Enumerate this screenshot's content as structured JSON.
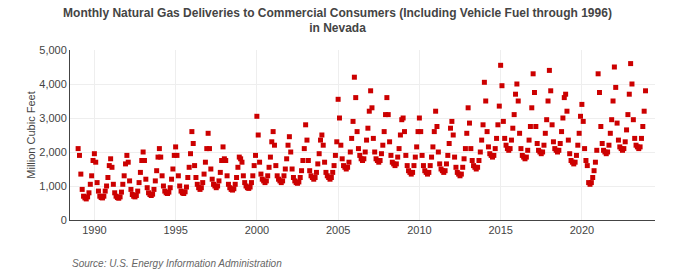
{
  "chart_data": {
    "type": "scatter",
    "title": "Monthly Natural Gas Deliveries to Commercial Consumers (Including Vehicle Fuel through 1996)\nin Nevada",
    "ylabel": "Million Cubic Feet",
    "annotations": [
      "Source: U.S. Energy Information Administration"
    ],
    "color": "#cc0000",
    "marker": "square",
    "grid": true,
    "xlim": [
      1988.5,
      2024.5
    ],
    "ylim": [
      0,
      5000
    ],
    "xticks": [
      1990,
      1995,
      2000,
      2005,
      2010,
      2015,
      2020
    ],
    "yticks": [
      0,
      {
        "value": 1000,
        "label": "1,000"
      },
      {
        "value": 2000,
        "label": "2,000"
      },
      {
        "value": 3000,
        "label": "3,000"
      },
      {
        "value": 4000,
        "label": "4,000"
      },
      {
        "value": 5000,
        "label": "5,000"
      }
    ],
    "x": [
      1989.0,
      1989.083,
      1989.167,
      1989.25,
      1989.333,
      1989.417,
      1989.5,
      1989.583,
      1989.667,
      1989.75,
      1989.833,
      1989.917,
      1990.0,
      1990.083,
      1990.167,
      1990.25,
      1990.333,
      1990.417,
      1990.5,
      1990.583,
      1990.667,
      1990.75,
      1990.833,
      1990.917,
      1991.0,
      1991.083,
      1991.167,
      1991.25,
      1991.333,
      1991.417,
      1991.5,
      1991.583,
      1991.667,
      1991.75,
      1991.833,
      1991.917,
      1992.0,
      1992.083,
      1992.167,
      1992.25,
      1992.333,
      1992.417,
      1992.5,
      1992.583,
      1992.667,
      1992.75,
      1992.833,
      1992.917,
      1993.0,
      1993.083,
      1993.167,
      1993.25,
      1993.333,
      1993.417,
      1993.5,
      1993.583,
      1993.667,
      1993.75,
      1993.833,
      1993.917,
      1994.0,
      1994.083,
      1994.167,
      1994.25,
      1994.333,
      1994.417,
      1994.5,
      1994.583,
      1994.667,
      1994.75,
      1994.833,
      1994.917,
      1995.0,
      1995.083,
      1995.167,
      1995.25,
      1995.333,
      1995.417,
      1995.5,
      1995.583,
      1995.667,
      1995.75,
      1995.833,
      1995.917,
      1996.0,
      1996.083,
      1996.167,
      1996.25,
      1996.333,
      1996.417,
      1996.5,
      1996.583,
      1996.667,
      1996.75,
      1996.833,
      1996.917,
      1997.0,
      1997.083,
      1997.167,
      1997.25,
      1997.333,
      1997.417,
      1997.5,
      1997.583,
      1997.667,
      1997.75,
      1997.833,
      1997.917,
      1998.0,
      1998.083,
      1998.167,
      1998.25,
      1998.333,
      1998.417,
      1998.5,
      1998.583,
      1998.667,
      1998.75,
      1998.833,
      1998.917,
      1999.0,
      1999.083,
      1999.167,
      1999.25,
      1999.333,
      1999.417,
      1999.5,
      1999.583,
      1999.667,
      1999.75,
      1999.833,
      1999.917,
      2000.0,
      2000.083,
      2000.167,
      2000.25,
      2000.333,
      2000.417,
      2000.5,
      2000.583,
      2000.667,
      2000.75,
      2000.833,
      2000.917,
      2001.0,
      2001.083,
      2001.167,
      2001.25,
      2001.333,
      2001.417,
      2001.5,
      2001.583,
      2001.667,
      2001.75,
      2001.833,
      2001.917,
      2002.0,
      2002.083,
      2002.167,
      2002.25,
      2002.333,
      2002.417,
      2002.5,
      2002.583,
      2002.667,
      2002.75,
      2002.833,
      2002.917,
      2003.0,
      2003.083,
      2003.167,
      2003.25,
      2003.333,
      2003.417,
      2003.5,
      2003.583,
      2003.667,
      2003.75,
      2003.833,
      2003.917,
      2004.0,
      2004.083,
      2004.167,
      2004.25,
      2004.333,
      2004.417,
      2004.5,
      2004.583,
      2004.667,
      2004.75,
      2004.833,
      2004.917,
      2005.0,
      2005.083,
      2005.167,
      2005.25,
      2005.333,
      2005.417,
      2005.5,
      2005.583,
      2005.667,
      2005.75,
      2005.833,
      2005.917,
      2006.0,
      2006.083,
      2006.167,
      2006.25,
      2006.333,
      2006.417,
      2006.5,
      2006.583,
      2006.667,
      2006.75,
      2006.833,
      2006.917,
      2007.0,
      2007.083,
      2007.167,
      2007.25,
      2007.333,
      2007.417,
      2007.5,
      2007.583,
      2007.667,
      2007.75,
      2007.833,
      2007.917,
      2008.0,
      2008.083,
      2008.167,
      2008.25,
      2008.333,
      2008.417,
      2008.5,
      2008.583,
      2008.667,
      2008.75,
      2008.833,
      2008.917,
      2009.0,
      2009.083,
      2009.167,
      2009.25,
      2009.333,
      2009.417,
      2009.5,
      2009.583,
      2009.667,
      2009.75,
      2009.833,
      2009.917,
      2010.0,
      2010.083,
      2010.167,
      2010.25,
      2010.333,
      2010.417,
      2010.5,
      2010.583,
      2010.667,
      2010.75,
      2010.833,
      2010.917,
      2011.0,
      2011.083,
      2011.167,
      2011.25,
      2011.333,
      2011.417,
      2011.5,
      2011.583,
      2011.667,
      2011.75,
      2011.833,
      2011.917,
      2012.0,
      2012.083,
      2012.167,
      2012.25,
      2012.333,
      2012.417,
      2012.5,
      2012.583,
      2012.667,
      2012.75,
      2012.833,
      2012.917,
      2013.0,
      2013.083,
      2013.167,
      2013.25,
      2013.333,
      2013.417,
      2013.5,
      2013.583,
      2013.667,
      2013.75,
      2013.833,
      2013.917,
      2014.0,
      2014.083,
      2014.167,
      2014.25,
      2014.333,
      2014.417,
      2014.5,
      2014.583,
      2014.667,
      2014.75,
      2014.833,
      2014.917,
      2015.0,
      2015.083,
      2015.167,
      2015.25,
      2015.333,
      2015.417,
      2015.5,
      2015.583,
      2015.667,
      2015.75,
      2015.833,
      2015.917,
      2016.0,
      2016.083,
      2016.167,
      2016.25,
      2016.333,
      2016.417,
      2016.5,
      2016.583,
      2016.667,
      2016.75,
      2016.833,
      2016.917,
      2017.0,
      2017.083,
      2017.167,
      2017.25,
      2017.333,
      2017.417,
      2017.5,
      2017.583,
      2017.667,
      2017.75,
      2017.833,
      2017.917,
      2018.0,
      2018.083,
      2018.167,
      2018.25,
      2018.333,
      2018.417,
      2018.5,
      2018.583,
      2018.667,
      2018.75,
      2018.833,
      2018.917,
      2019.0,
      2019.083,
      2019.167,
      2019.25,
      2019.333,
      2019.417,
      2019.5,
      2019.583,
      2019.667,
      2019.75,
      2019.833,
      2019.917,
      2020.0,
      2020.083,
      2020.167,
      2020.25,
      2020.333,
      2020.417,
      2020.5,
      2020.583,
      2020.667,
      2020.75,
      2020.833,
      2020.917,
      2021.0,
      2021.083,
      2021.167,
      2021.25,
      2021.333,
      2021.417,
      2021.5,
      2021.583,
      2021.667,
      2021.75,
      2021.833,
      2021.917,
      2022.0,
      2022.083,
      2022.167,
      2022.25,
      2022.333,
      2022.417,
      2022.5,
      2022.583,
      2022.667,
      2022.75,
      2022.833,
      2022.917,
      2023.0,
      2023.083,
      2023.167,
      2023.25,
      2023.333,
      2023.417,
      2023.5,
      2023.583,
      2023.667,
      2023.75,
      2023.833,
      2023.917
    ],
    "values": [
      2100,
      1900,
      1350,
      900,
      700,
      650,
      620,
      680,
      800,
      1050,
      1300,
      1750,
      1950,
      1700,
      1100,
      850,
      700,
      660,
      650,
      700,
      850,
      1000,
      1250,
      1600,
      1800,
      1550,
      1050,
      800,
      700,
      660,
      640,
      680,
      820,
      1050,
      1300,
      1650,
      1900,
      1700,
      1150,
      900,
      750,
      700,
      680,
      720,
      850,
      1100,
      1400,
      1750,
      2000,
      1750,
      1200,
      950,
      800,
      750,
      720,
      760,
      900,
      1150,
      1450,
      1850,
      2100,
      1850,
      1300,
      1000,
      850,
      800,
      780,
      820,
      950,
      1200,
      1500,
      1900,
      2150,
      1900,
      1300,
      1000,
      850,
      800,
      780,
      830,
      970,
      1250,
      1550,
      1950,
      2600,
      2250,
      1600,
      1250,
      1050,
      950,
      900,
      950,
      1100,
      1350,
      1700,
      2100,
      2550,
      2100,
      1500,
      1200,
      1050,
      1000,
      950,
      1000,
      1150,
      1400,
      1750,
      2150,
      1800,
      1750,
      1300,
      1050,
      950,
      900,
      880,
      920,
      1050,
      1250,
      1550,
      1850,
      1800,
      1700,
      1300,
      1100,
      1000,
      950,
      930,
      970,
      1100,
      1300,
      1600,
      1900,
      3050,
      2500,
      1700,
      1350,
      1200,
      1150,
      1100,
      1150,
      1300,
      1550,
      1850,
      2300,
      2600,
      2200,
      1600,
      1300,
      1200,
      1150,
      1100,
      1150,
      1300,
      1500,
      1800,
      2200,
      2450,
      2000,
      1500,
      1250,
      1150,
      1100,
      1080,
      1120,
      1250,
      1450,
      1750,
      2100,
      2800,
      2350,
      1750,
      1450,
      1300,
      1250,
      1200,
      1250,
      1400,
      1650,
      1950,
      2350,
      2500,
      2200,
      1700,
      1400,
      1300,
      1250,
      1200,
      1250,
      1400,
      1600,
      1900,
      2300,
      3550,
      3000,
      2200,
      1800,
      1600,
      1550,
      1500,
      1550,
      1700,
      2000,
      2400,
      2900,
      4200,
      3600,
      2600,
      2100,
      1900,
      1800,
      1750,
      1800,
      2000,
      2350,
      2700,
      3200,
      3800,
      3300,
      2400,
      2000,
      1800,
      1750,
      1700,
      1750,
      1950,
      2200,
      2600,
      3100,
      3600,
      3100,
      2300,
      1900,
      1700,
      1650,
      1600,
      1650,
      1850,
      2100,
      2500,
      2950,
      3000,
      2600,
      1900,
      1600,
      1450,
      1400,
      1350,
      1400,
      1600,
      1850,
      2150,
      2600,
      3000,
      2600,
      1900,
      1600,
      1450,
      1400,
      1350,
      1400,
      1600,
      1850,
      2150,
      2600,
      3200,
      2750,
      2000,
      1650,
      1500,
      1450,
      1400,
      1450,
      1650,
      1900,
      2250,
      2700,
      2900,
      2500,
      1850,
      1550,
      1400,
      1350,
      1300,
      1350,
      1550,
      1800,
      2100,
      2550,
      3300,
      2850,
      2100,
      1750,
      1600,
      1550,
      1500,
      1550,
      1750,
      2000,
      2350,
      2800,
      4050,
      3500,
      2600,
      2150,
      1950,
      1900,
      1850,
      1900,
      2100,
      2400,
      2800,
      3350,
      4550,
      3950,
      2900,
      2400,
      2200,
      2100,
      2050,
      2100,
      2350,
      2700,
      3100,
      3700,
      4000,
      3500,
      2550,
      2100,
      1900,
      1850,
      1800,
      1850,
      2050,
      2350,
      2750,
      3300,
      4300,
      3750,
      2750,
      2250,
      2050,
      2000,
      1950,
      2000,
      2200,
      2550,
      2950,
      3500,
      4400,
      3800,
      2800,
      2300,
      2100,
      2050,
      2000,
      2050,
      2250,
      2600,
      3000,
      3600,
      3700,
      3200,
      2350,
      1950,
      1750,
      1700,
      1650,
      1700,
      1900,
      2200,
      2550,
      3050,
      3400,
      2900,
      2100,
      1750,
      1600,
      1100,
      1050,
      1100,
      1250,
      1450,
      1700,
      2050,
      4300,
      3750,
      2750,
      2250,
      2050,
      2000,
      1950,
      2000,
      2200,
      2550,
      2950,
      3500,
      4500,
      3900,
      2850,
      2350,
      2150,
      2100,
      2050,
      2100,
      2300,
      2650,
      3100,
      3700,
      4600,
      4000,
      2950,
      2400,
      2200,
      2150,
      2100,
      2150,
      2400,
      2750,
      3200,
      3800
    ]
  }
}
